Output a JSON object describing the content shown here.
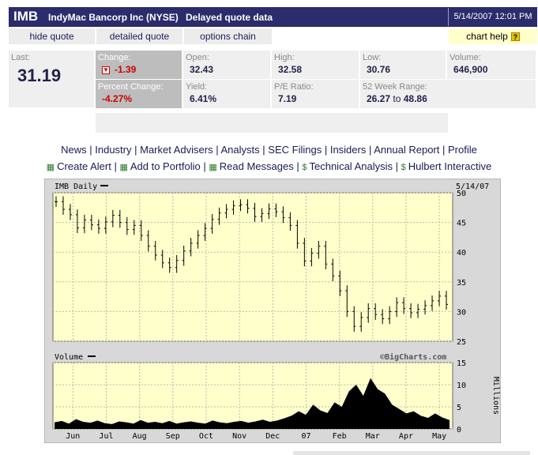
{
  "header": {
    "symbol": "IMB",
    "company": "IndyMac Bancorp Inc (NYSE)",
    "delay_note": "Delayed quote data",
    "timestamp": "5/14/2007 12:01 PM"
  },
  "nav": {
    "hide_quote": "hide quote",
    "detailed_quote": "detailed quote",
    "options_chain": "options chain",
    "chart_help": "chart help",
    "help_icon": "?"
  },
  "quote": {
    "last_label": "Last:",
    "last_value": "31.19",
    "change_label": "Change:",
    "change_value": "-1.39",
    "pct_label": "Percent Change:",
    "pct_value": "-4.27%",
    "open_label": "Open:",
    "open_value": "32.43",
    "yield_label": "Yield:",
    "yield_value": "6.41%",
    "high_label": "High:",
    "high_value": "32.58",
    "pe_label": "P/E Ratio:",
    "pe_value": "7.19",
    "low_label": "Low:",
    "low_value": "30.76",
    "range_label": "52 Week Range:",
    "range_low": "26.27",
    "range_to": "to",
    "range_high": "48.86",
    "volume_label": "Volume:",
    "volume_value": "646,900"
  },
  "links_row1": [
    "News",
    "Industry",
    "Market Advisers",
    "Analysts",
    "SEC Filings",
    "Insiders",
    "Annual Report",
    "Profile"
  ],
  "links_row2": [
    "Create Alert",
    "Add to Portfolio",
    "Read Messages",
    "Technical Analysis",
    "Hulbert Interactive"
  ],
  "colors": {
    "header_bg": "#2b2c6b",
    "plot_bg": "#ffffcc",
    "frame_bg": "#d8d8d8",
    "down_red": "#cc0000"
  },
  "chart_data": [
    {
      "type": "ohlc",
      "title": "IMB Daily",
      "date_label": "5/14/07",
      "ylim": [
        25,
        50
      ],
      "y_ticks": [
        25,
        30,
        35,
        40,
        45,
        50
      ],
      "x_ticks": [
        "Jun",
        "Jul",
        "Aug",
        "Sep",
        "Oct",
        "Nov",
        "Dec",
        "07",
        "Feb",
        "Mar",
        "Apr",
        "May"
      ],
      "series": [
        {
          "values": [
            48.5,
            47.2,
            46.3,
            44.1,
            45.4,
            44.6,
            44.0,
            45.1,
            46.2,
            45.0,
            43.8,
            44.5,
            42.8,
            41.0,
            39.5,
            38.2,
            37.4,
            38.6,
            40.2,
            41.5,
            42.8,
            44.0,
            45.5,
            46.6,
            47.2,
            47.8,
            48.0,
            47.4,
            46.0,
            46.5,
            47.3,
            46.8,
            45.8,
            44.5,
            41.5,
            38.5,
            39.8,
            41.0,
            38.0,
            36.0,
            33.5,
            30.0,
            27.5,
            29.0,
            30.5,
            29.5,
            28.8,
            30.0,
            31.5,
            30.5,
            29.8,
            30.4,
            31.0,
            31.8,
            32.6,
            31.2
          ]
        }
      ]
    },
    {
      "type": "area",
      "title": "Volume",
      "watermark": "©BigCharts.com",
      "ylabel": "Millions",
      "ylim": [
        0,
        15
      ],
      "y_ticks": [
        0,
        5,
        10,
        15
      ],
      "series": [
        {
          "values": [
            1.5,
            1.8,
            1.2,
            2.2,
            1.6,
            1.4,
            1.9,
            1.3,
            1.1,
            1.7,
            1.5,
            1.2,
            2.0,
            1.4,
            1.6,
            1.3,
            1.8,
            1.2,
            1.5,
            1.7,
            1.4,
            1.2,
            1.9,
            1.5,
            1.3,
            1.6,
            1.8,
            1.4,
            1.7,
            2.1,
            1.6,
            1.9,
            2.4,
            3.0,
            4.0,
            3.2,
            5.5,
            4.2,
            3.6,
            6.0,
            5.0,
            8.5,
            10.0,
            7.5,
            11.5,
            9.0,
            8.0,
            5.5,
            4.5,
            3.5,
            4.0,
            3.0,
            2.5,
            3.5,
            2.6,
            2.0
          ]
        }
      ]
    }
  ]
}
